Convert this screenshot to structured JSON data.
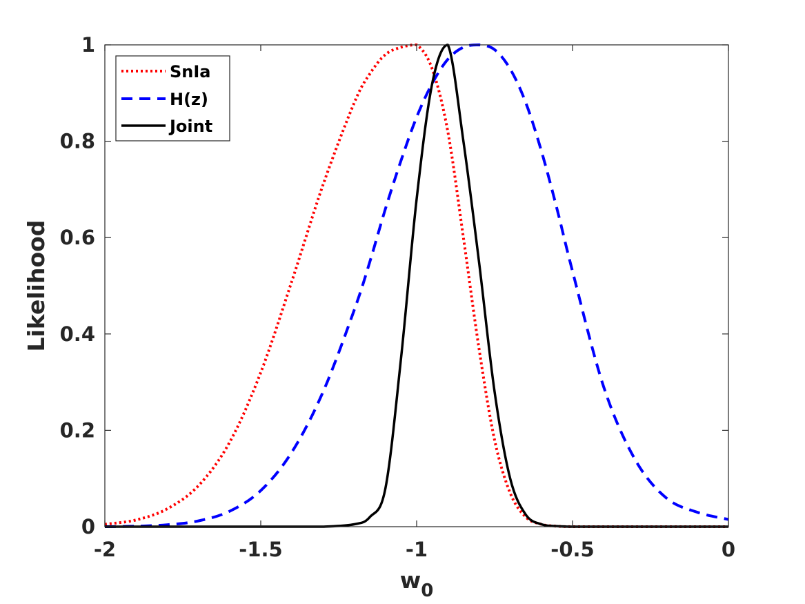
{
  "chart_data": {
    "type": "line",
    "title": "",
    "xlabel": "w",
    "xlabel_subscript": "0",
    "ylabel": "Likelihood",
    "xlim": [
      -2,
      0
    ],
    "ylim": [
      0,
      1
    ],
    "x_ticks": [
      -2,
      -1.5,
      -1,
      -0.5,
      0
    ],
    "x_tick_labels": [
      "-2",
      "-1.5",
      "-1",
      "-0.5",
      "0"
    ],
    "y_ticks": [
      0,
      0.2,
      0.4,
      0.6,
      0.8,
      1
    ],
    "y_tick_labels": [
      "0",
      "0.2",
      "0.4",
      "0.6",
      "0.8",
      "1"
    ],
    "grid": false,
    "legend_position": "top-left",
    "x": [
      -2.0,
      -1.9,
      -1.8,
      -1.7,
      -1.6,
      -1.5,
      -1.4,
      -1.3,
      -1.2,
      -1.15,
      -1.1,
      -1.05,
      -1.0,
      -0.95,
      -0.9,
      -0.85,
      -0.8,
      -0.75,
      -0.7,
      -0.65,
      -0.6,
      -0.55,
      -0.5,
      -0.4,
      -0.3,
      -0.2,
      -0.1,
      0.0
    ],
    "series": [
      {
        "name": "SnIa",
        "color": "#ff0000",
        "dash": "dotted",
        "values": [
          0.005,
          0.014,
          0.037,
          0.085,
          0.175,
          0.32,
          0.51,
          0.71,
          0.88,
          0.94,
          0.98,
          0.995,
          1.0,
          0.95,
          0.82,
          0.6,
          0.37,
          0.18,
          0.07,
          0.02,
          0.005,
          0.001,
          0.0,
          0.0,
          0.0,
          0.0,
          0.0,
          0.0
        ]
      },
      {
        "name": "H(z)",
        "color": "#0000ff",
        "dash": "dashed",
        "values": [
          0.0,
          0.001,
          0.004,
          0.012,
          0.032,
          0.075,
          0.155,
          0.28,
          0.45,
          0.55,
          0.66,
          0.76,
          0.85,
          0.92,
          0.97,
          0.995,
          1.0,
          0.99,
          0.95,
          0.88,
          0.78,
          0.66,
          0.53,
          0.29,
          0.14,
          0.06,
          0.03,
          0.015
        ]
      },
      {
        "name": "Joint",
        "color": "#000000",
        "dash": "solid",
        "values": [
          0.0,
          0.0,
          0.0,
          0.0,
          0.0,
          0.0,
          0.0,
          0.0,
          0.005,
          0.02,
          0.08,
          0.35,
          0.68,
          0.92,
          1.0,
          0.8,
          0.55,
          0.28,
          0.1,
          0.025,
          0.005,
          0.001,
          0.0,
          0.0,
          0.0,
          0.0,
          0.0,
          0.0
        ]
      }
    ]
  }
}
